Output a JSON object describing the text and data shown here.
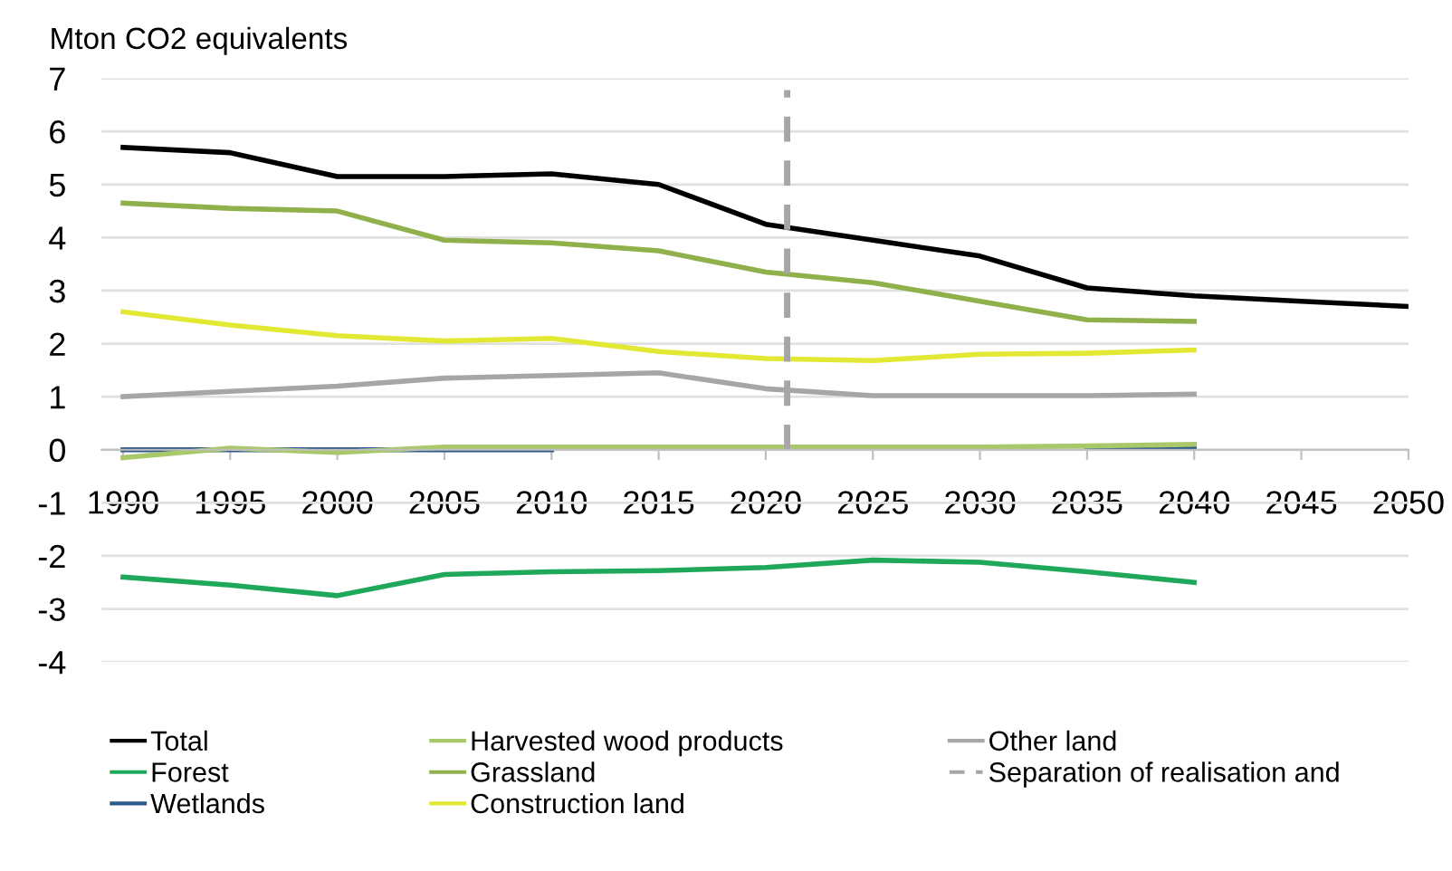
{
  "chart_data": {
    "type": "line",
    "ylabel": "Mton CO2 equivalents",
    "x": [
      1990,
      1995,
      2000,
      2005,
      2010,
      2015,
      2020,
      2025,
      2030,
      2035,
      2040,
      2045,
      2050
    ],
    "series": [
      {
        "name": "Total",
        "color": "#000000",
        "values": [
          5.7,
          5.6,
          5.15,
          5.15,
          5.2,
          5.0,
          4.25,
          3.95,
          3.65,
          3.05,
          2.9,
          2.8,
          2.7
        ]
      },
      {
        "name": "Forest",
        "color": "#1fa85a",
        "values": [
          -2.4,
          -2.55,
          -2.75,
          -2.35,
          -2.3,
          -2.28,
          -2.22,
          -2.08,
          -2.12,
          -2.3,
          -2.5,
          null,
          null
        ]
      },
      {
        "name": "Wetlands",
        "color": "#2e5a8c",
        "values": [
          0.0,
          0.0,
          0.0,
          0.0,
          0.0,
          null,
          null,
          null,
          null,
          0.05,
          0.05,
          null,
          null
        ]
      },
      {
        "name": "Harvested wood products",
        "color": "#a8c86a",
        "values": [
          -0.15,
          0.03,
          -0.05,
          0.05,
          0.05,
          0.05,
          0.05,
          0.05,
          0.05,
          0.07,
          0.1,
          null,
          null
        ]
      },
      {
        "name": "Grassland",
        "color": "#8fb04a",
        "values": [
          4.65,
          4.55,
          4.5,
          3.95,
          3.9,
          3.75,
          3.35,
          3.15,
          2.8,
          2.45,
          2.42,
          null,
          null
        ]
      },
      {
        "name": "Construction land",
        "color": "#e2e833",
        "values": [
          2.6,
          2.35,
          2.15,
          2.05,
          2.1,
          1.85,
          1.72,
          1.68,
          1.8,
          1.82,
          1.88,
          null,
          null
        ]
      },
      {
        "name": "Other land",
        "color": "#a6a6a6",
        "values": [
          1.0,
          1.1,
          1.2,
          1.35,
          1.4,
          1.45,
          1.15,
          1.02,
          1.02,
          1.02,
          1.05,
          null,
          null
        ]
      }
    ],
    "ref_lines": [
      {
        "axis": "x",
        "value": 2021,
        "label": "Separation of realisation and",
        "color": "#a6a6a6",
        "line_style": "dashed"
      }
    ],
    "xlim": [
      1989,
      2050
    ],
    "xticks": [
      1990,
      1995,
      2000,
      2005,
      2010,
      2015,
      2020,
      2025,
      2030,
      2035,
      2040,
      2045,
      2050
    ],
    "ylim": [
      -4,
      7
    ],
    "yticks": [
      -4,
      -3,
      -2,
      -1,
      0,
      1,
      2,
      3,
      4,
      5,
      6,
      7
    ],
    "grid": "y",
    "legend": "bottom",
    "marker": "none",
    "line_style": "solid"
  }
}
